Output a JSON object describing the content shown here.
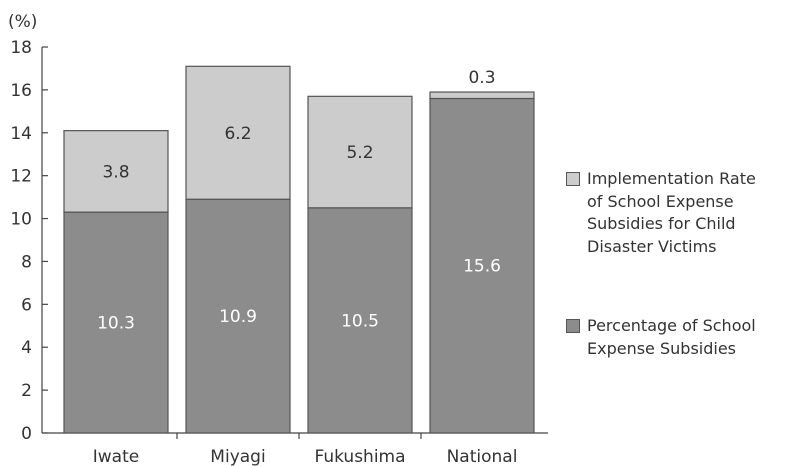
{
  "chart_data": {
    "type": "bar",
    "stacked": true,
    "categories": [
      "Iwate",
      "Miyagi",
      "Fukushima",
      "National"
    ],
    "series": [
      {
        "name": "Percentage of School Expense Subsidies",
        "values": [
          10.3,
          10.9,
          10.5,
          15.6
        ],
        "labels": [
          "10.3",
          "10.9",
          "10.5",
          "15.6"
        ],
        "color": "#8c8c8c",
        "label_color": "#ffffff"
      },
      {
        "name": "Implementation Rate of School Expense Subsidies for Child Disaster Victims",
        "values": [
          3.8,
          6.2,
          5.2,
          0.3
        ],
        "labels": [
          "3.8",
          "6.2",
          "5.2",
          "0.3"
        ],
        "color": "#cccccc",
        "label_color": "#333333"
      }
    ],
    "ylabel": "(%)",
    "ylim": [
      0,
      18
    ],
    "yticks": [
      0,
      2,
      4,
      6,
      8,
      10,
      12,
      14,
      16,
      18
    ],
    "ytick_labels": [
      "0",
      "2",
      "4",
      "6",
      "8",
      "10",
      "12",
      "14",
      "16",
      "18"
    ],
    "grid": false,
    "legend_position": "right",
    "legend_lines": [
      [
        "Implementation Rate",
        "of School Expense",
        "Subsidies for Child",
        "Disaster Victims"
      ],
      [
        "Percentage of School",
        "Expense Subsidies"
      ]
    ]
  }
}
